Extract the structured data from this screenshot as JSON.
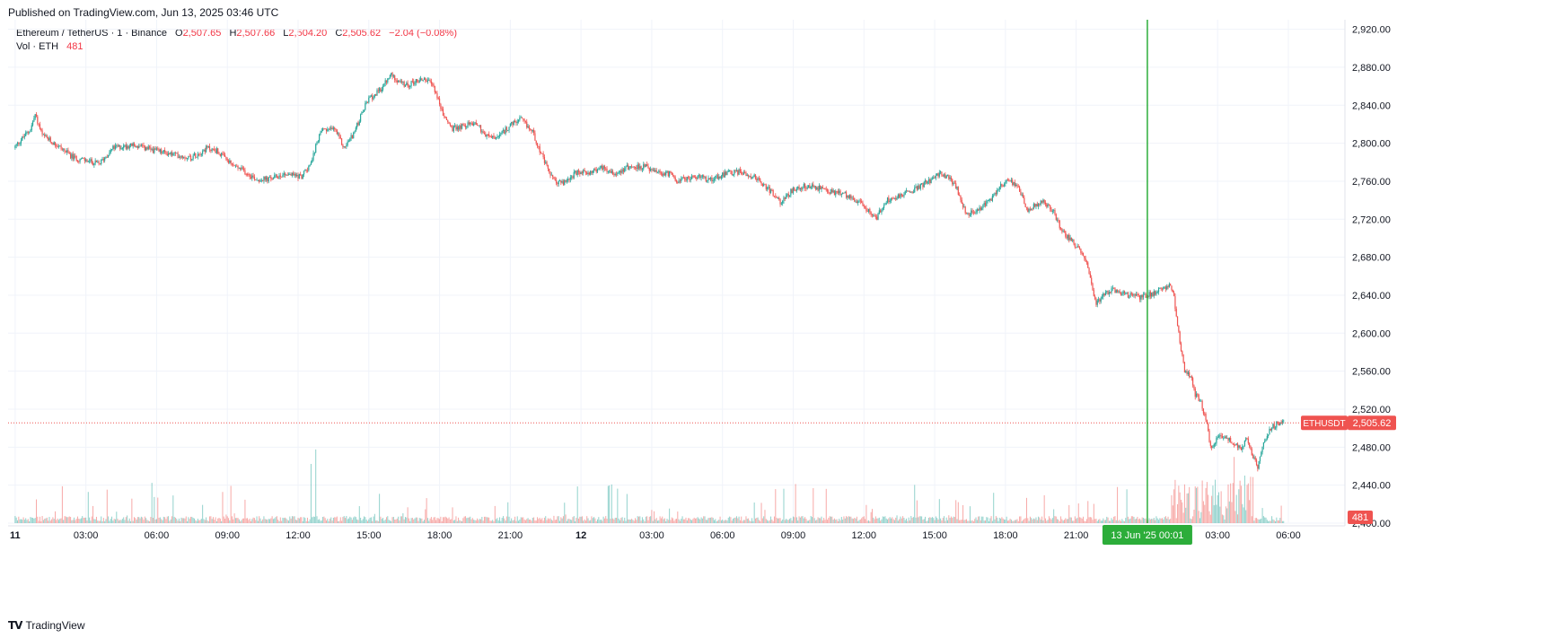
{
  "header": {
    "published": "Published on TradingView.com, Jun 13, 2025 03:46 UTC"
  },
  "legend": {
    "symbol": "Ethereum / TetherUS · 1 · Binance",
    "o_label": "O",
    "o_value": "2,507.65",
    "h_label": "H",
    "h_value": "2,507.66",
    "l_label": "L",
    "l_value": "2,504.20",
    "c_label": "C",
    "c_value": "2,505.62",
    "change": "−2.04 (−0.08%)",
    "vol_label": "Vol · ETH",
    "vol_value": "481"
  },
  "footer": {
    "brand": "TradingView",
    "logo_icon": "tradingview-logo-icon"
  },
  "colors": {
    "up": "#26a69a",
    "down": "#ef5350",
    "crosshair": "#2cad3a",
    "grid": "#f0f3fa",
    "axis_text": "#131722"
  },
  "chart_data": {
    "type": "candlestick",
    "symbol": "ETHUSDT",
    "ylim": [
      2400,
      2930
    ],
    "y_ticks": [
      "2,400.00",
      "2,440.00",
      "2,480.00",
      "2,520.00",
      "2,560.00",
      "2,600.00",
      "2,640.00",
      "2,680.00",
      "2,720.00",
      "2,760.00",
      "2,800.00",
      "2,840.00",
      "2,880.00",
      "2,920.00"
    ],
    "x_ticks": [
      {
        "label": "11",
        "h": 0,
        "bold": true
      },
      {
        "label": "03:00",
        "h": 3
      },
      {
        "label": "06:00",
        "h": 6
      },
      {
        "label": "09:00",
        "h": 9
      },
      {
        "label": "12:00",
        "h": 12
      },
      {
        "label": "15:00",
        "h": 15
      },
      {
        "label": "18:00",
        "h": 18
      },
      {
        "label": "21:00",
        "h": 21
      },
      {
        "label": "12",
        "h": 24,
        "bold": true
      },
      {
        "label": "03:00",
        "h": 27
      },
      {
        "label": "06:00",
        "h": 30
      },
      {
        "label": "09:00",
        "h": 33
      },
      {
        "label": "12:00",
        "h": 36
      },
      {
        "label": "15:00",
        "h": 39
      },
      {
        "label": "18:00",
        "h": 42
      },
      {
        "label": "21:00",
        "h": 45
      },
      {
        "label": "03:00",
        "h": 51
      },
      {
        "label": "06:00",
        "h": 54
      }
    ],
    "x_range_hours": [
      -0.3,
      56.4
    ],
    "price_path": [
      [
        0.0,
        2795
      ],
      [
        0.7,
        2815
      ],
      [
        0.9,
        2830
      ],
      [
        1.2,
        2808
      ],
      [
        2.0,
        2795
      ],
      [
        2.5,
        2785
      ],
      [
        3.0,
        2782
      ],
      [
        3.6,
        2778
      ],
      [
        4.2,
        2795
      ],
      [
        5.0,
        2798
      ],
      [
        6.0,
        2792
      ],
      [
        6.8,
        2788
      ],
      [
        7.5,
        2785
      ],
      [
        8.2,
        2795
      ],
      [
        8.6,
        2792
      ],
      [
        9.2,
        2778
      ],
      [
        9.8,
        2770
      ],
      [
        10.3,
        2762
      ],
      [
        10.8,
        2762
      ],
      [
        11.5,
        2768
      ],
      [
        12.2,
        2765
      ],
      [
        12.6,
        2780
      ],
      [
        13.0,
        2812
      ],
      [
        13.6,
        2815
      ],
      [
        14.0,
        2795
      ],
      [
        14.4,
        2810
      ],
      [
        15.0,
        2845
      ],
      [
        15.5,
        2855
      ],
      [
        16.0,
        2872
      ],
      [
        16.6,
        2860
      ],
      [
        17.0,
        2865
      ],
      [
        17.4,
        2868
      ],
      [
        17.8,
        2860
      ],
      [
        18.2,
        2830
      ],
      [
        18.6,
        2815
      ],
      [
        19.0,
        2818
      ],
      [
        19.6,
        2822
      ],
      [
        20.0,
        2808
      ],
      [
        20.5,
        2805
      ],
      [
        21.0,
        2818
      ],
      [
        21.5,
        2825
      ],
      [
        22.0,
        2812
      ],
      [
        22.5,
        2780
      ],
      [
        22.9,
        2760
      ],
      [
        23.3,
        2758
      ],
      [
        23.8,
        2768
      ],
      [
        24.5,
        2770
      ],
      [
        25.0,
        2775
      ],
      [
        25.5,
        2768
      ],
      [
        26.0,
        2775
      ],
      [
        26.8,
        2775
      ],
      [
        27.3,
        2768
      ],
      [
        27.8,
        2768
      ],
      [
        28.2,
        2760
      ],
      [
        28.8,
        2765
      ],
      [
        29.5,
        2762
      ],
      [
        30.2,
        2768
      ],
      [
        30.8,
        2770
      ],
      [
        31.4,
        2765
      ],
      [
        32.0,
        2752
      ],
      [
        32.5,
        2738
      ],
      [
        33.0,
        2750
      ],
      [
        33.6,
        2755
      ],
      [
        34.2,
        2752
      ],
      [
        34.8,
        2748
      ],
      [
        35.4,
        2745
      ],
      [
        35.8,
        2738
      ],
      [
        36.2,
        2730
      ],
      [
        36.6,
        2722
      ],
      [
        37.0,
        2740
      ],
      [
        37.6,
        2745
      ],
      [
        38.2,
        2752
      ],
      [
        38.8,
        2760
      ],
      [
        39.3,
        2768
      ],
      [
        39.7,
        2762
      ],
      [
        40.0,
        2752
      ],
      [
        40.4,
        2725
      ],
      [
        40.8,
        2728
      ],
      [
        41.4,
        2740
      ],
      [
        41.8,
        2755
      ],
      [
        42.2,
        2762
      ],
      [
        42.6,
        2752
      ],
      [
        43.0,
        2730
      ],
      [
        43.3,
        2735
      ],
      [
        43.7,
        2738
      ],
      [
        44.1,
        2728
      ],
      [
        44.4,
        2710
      ],
      [
        44.8,
        2698
      ],
      [
        45.2,
        2688
      ],
      [
        45.5,
        2672
      ],
      [
        45.7,
        2650
      ],
      [
        45.9,
        2632
      ],
      [
        46.2,
        2640
      ],
      [
        46.6,
        2645
      ],
      [
        47.2,
        2640
      ],
      [
        47.8,
        2638
      ],
      [
        48.3,
        2642
      ],
      [
        48.7,
        2648
      ],
      [
        49.0,
        2650
      ],
      [
        49.15,
        2645
      ],
      [
        49.3,
        2620
      ],
      [
        49.45,
        2590
      ],
      [
        49.65,
        2560
      ],
      [
        49.9,
        2555
      ],
      [
        50.1,
        2535
      ],
      [
        50.3,
        2530
      ],
      [
        50.55,
        2510
      ],
      [
        50.75,
        2480
      ],
      [
        51.0,
        2488
      ],
      [
        51.3,
        2492
      ],
      [
        51.7,
        2485
      ],
      [
        52.0,
        2478
      ],
      [
        52.3,
        2490
      ],
      [
        52.55,
        2470
      ],
      [
        52.75,
        2460
      ],
      [
        53.0,
        2485
      ],
      [
        53.3,
        2500
      ],
      [
        53.6,
        2505
      ],
      [
        53.8,
        2506
      ]
    ],
    "last_price": "2,505.62",
    "last_price_label": "ETHUSDT",
    "last_price_value": 2505.62,
    "volume_last": "481",
    "crosshair": {
      "time_label": "13 Jun '25   00:01",
      "h": 48.02
    },
    "end_hour": 53.8
  }
}
